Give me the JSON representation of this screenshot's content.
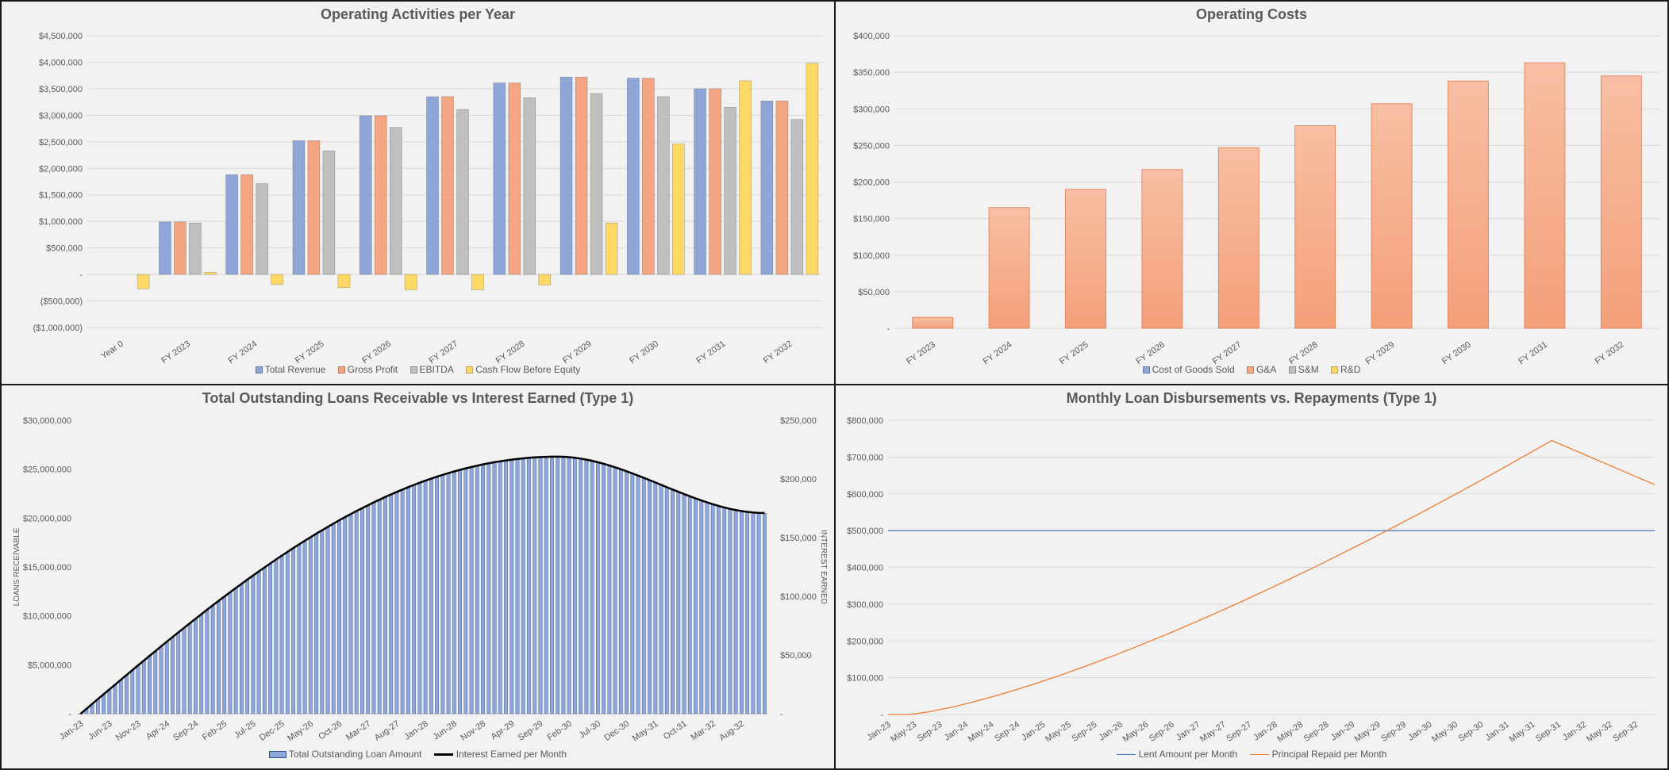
{
  "colors": {
    "revenue": "#8ea6d8",
    "gross_profit": "#f4a582",
    "ebitda": "#bfbfbf",
    "cash_flow": "#ffd966",
    "g_and_a": "#f6a985",
    "lent": "#4472c4",
    "repaid": "#ed7d31",
    "loan_bar": "#8ea6d8",
    "interest_line": "#000000"
  },
  "chart_data": [
    {
      "id": "operating-activities",
      "type": "bar",
      "title": "Operating Activities per Year",
      "categories": [
        "Year 0",
        "FY 2023",
        "FY 2024",
        "FY 2025",
        "FY 2026",
        "FY 2027",
        "FY 2028",
        "FY 2029",
        "FY 2030",
        "FY 2031",
        "FY 2032"
      ],
      "series": [
        {
          "name": "Total Revenue",
          "values": [
            0,
            990000,
            1880000,
            2520000,
            2990000,
            3350000,
            3610000,
            3720000,
            3700000,
            3500000,
            3270000
          ]
        },
        {
          "name": "Gross Profit",
          "values": [
            0,
            990000,
            1880000,
            2520000,
            2990000,
            3350000,
            3610000,
            3720000,
            3700000,
            3500000,
            3270000
          ]
        },
        {
          "name": "EBITDA",
          "values": [
            0,
            970000,
            1710000,
            2330000,
            2770000,
            3110000,
            3330000,
            3410000,
            3350000,
            3150000,
            2920000
          ]
        },
        {
          "name": "Cash Flow Before Equity",
          "values": [
            -270000,
            40000,
            -190000,
            -250000,
            -290000,
            -290000,
            -200000,
            970000,
            2460000,
            3650000,
            3980000
          ]
        }
      ],
      "ylim": [
        -1000000,
        4500000
      ],
      "yticks": [
        4500000,
        4000000,
        3500000,
        3000000,
        2500000,
        2000000,
        1500000,
        1000000,
        500000,
        0,
        -500000,
        -1000000
      ],
      "ytick_labels": [
        "$4,500,000",
        "$4,000,000",
        "$3,500,000",
        "$3,000,000",
        "$2,500,000",
        "$2,000,000",
        "$1,500,000",
        "$1,000,000",
        "$500,000",
        "-",
        "($500,000)",
        "($1,000,000)"
      ],
      "grid": true,
      "legend_position": "bottom"
    },
    {
      "id": "operating-costs",
      "type": "bar",
      "title": "Operating Costs",
      "categories": [
        "FY 2023",
        "FY 2024",
        "FY 2025",
        "FY 2026",
        "FY 2027",
        "FY 2028",
        "FY 2029",
        "FY 2030",
        "FY 2031",
        "FY 2032"
      ],
      "legend": [
        "Cost of Goods Sold",
        "G&A",
        "S&M",
        "R&D"
      ],
      "legend_colors": [
        "#8ea6d8",
        "#f6a985",
        "#bfbfbf",
        "#ffd966"
      ],
      "series": [
        {
          "name": "G&A",
          "values": [
            15000,
            165000,
            190000,
            217000,
            247000,
            277000,
            307000,
            338000,
            363000,
            345000
          ]
        }
      ],
      "ylim": [
        0,
        400000
      ],
      "yticks": [
        400000,
        350000,
        300000,
        250000,
        200000,
        150000,
        100000,
        50000,
        0
      ],
      "ytick_labels": [
        "$400,000",
        "$350,000",
        "$300,000",
        "$250,000",
        "$200,000",
        "$150,000",
        "$100,000",
        "$50,000",
        "-"
      ],
      "grid": true,
      "legend_position": "bottom"
    },
    {
      "id": "loans-vs-interest",
      "type": "bar",
      "title": "Total Outstanding Loans Receivable vs Interest Earned (Type 1)",
      "ylabel": "LOANS RECEIVABLE",
      "y2label": "INTEREST EARNED",
      "x_tick_labels": [
        "Jan-23",
        "Jun-23",
        "Nov-23",
        "Apr-24",
        "Sep-24",
        "Feb-25",
        "Jul-25",
        "Dec-25",
        "May-26",
        "Oct-26",
        "Mar-27",
        "Aug-27",
        "Jan-28",
        "Jun-28",
        "Nov-28",
        "Apr-29",
        "Sep-29",
        "Feb-30",
        "Jul-30",
        "Dec-30",
        "May-31",
        "Oct-31",
        "Mar-32",
        "Aug-32"
      ],
      "months": 120,
      "loan_profile": {
        "start": 0,
        "peak": 26200000,
        "peak_month": 83,
        "end": 20500000
      },
      "interest_profile": {
        "start": 0,
        "peak": 219000,
        "peak_month": 83,
        "end": 171000
      },
      "series": [
        {
          "name": "Total Outstanding Loan Amount",
          "axis": "left"
        },
        {
          "name": "Interest Earned per Month",
          "axis": "right"
        }
      ],
      "ylim": [
        0,
        30000000
      ],
      "y2lim": [
        0,
        250000
      ],
      "yticks": [
        30000000,
        25000000,
        20000000,
        15000000,
        10000000,
        5000000,
        0
      ],
      "ytick_labels": [
        "$30,000,000",
        "$25,000,000",
        "$20,000,000",
        "$15,000,000",
        "$10,000,000",
        "$5,000,000",
        "-"
      ],
      "y2ticks": [
        250000,
        200000,
        150000,
        100000,
        50000,
        0
      ],
      "y2tick_labels": [
        "$250,000",
        "$200,000",
        "$150,000",
        "$100,000",
        "$50,000",
        "-"
      ],
      "grid": false,
      "legend_position": "bottom"
    },
    {
      "id": "disbursements-vs-repayments",
      "type": "line",
      "title": "Monthly Loan Disbursements vs. Repayments (Type 1)",
      "x_tick_labels": [
        "Jan-23",
        "May-23",
        "Sep-23",
        "Jan-24",
        "May-24",
        "Sep-24",
        "Jan-25",
        "May-25",
        "Sep-25",
        "Jan-26",
        "May-26",
        "Sep-26",
        "Jan-27",
        "May-27",
        "Sep-27",
        "Jan-28",
        "May-28",
        "Sep-28",
        "Jan-29",
        "May-29",
        "Sep-29",
        "Jan-30",
        "May-30",
        "Sep-30",
        "Jan-31",
        "May-31",
        "Sep-31",
        "Jan-32",
        "May-32",
        "Sep-32"
      ],
      "months": 120,
      "series": [
        {
          "name": "Lent Amount per Month",
          "constant": 500000
        },
        {
          "name": "Principal Repaid per Month",
          "profile": {
            "start": 0,
            "flat_until_month": 3,
            "peak": 745000,
            "peak_month": 103,
            "end": 625000
          }
        }
      ],
      "ylim": [
        0,
        800000
      ],
      "yticks": [
        800000,
        700000,
        600000,
        500000,
        400000,
        300000,
        200000,
        100000,
        0
      ],
      "ytick_labels": [
        "$800,000",
        "$700,000",
        "$600,000",
        "$500,000",
        "$400,000",
        "$300,000",
        "$200,000",
        "$100,000",
        "-"
      ],
      "grid": true,
      "legend_position": "bottom"
    }
  ]
}
